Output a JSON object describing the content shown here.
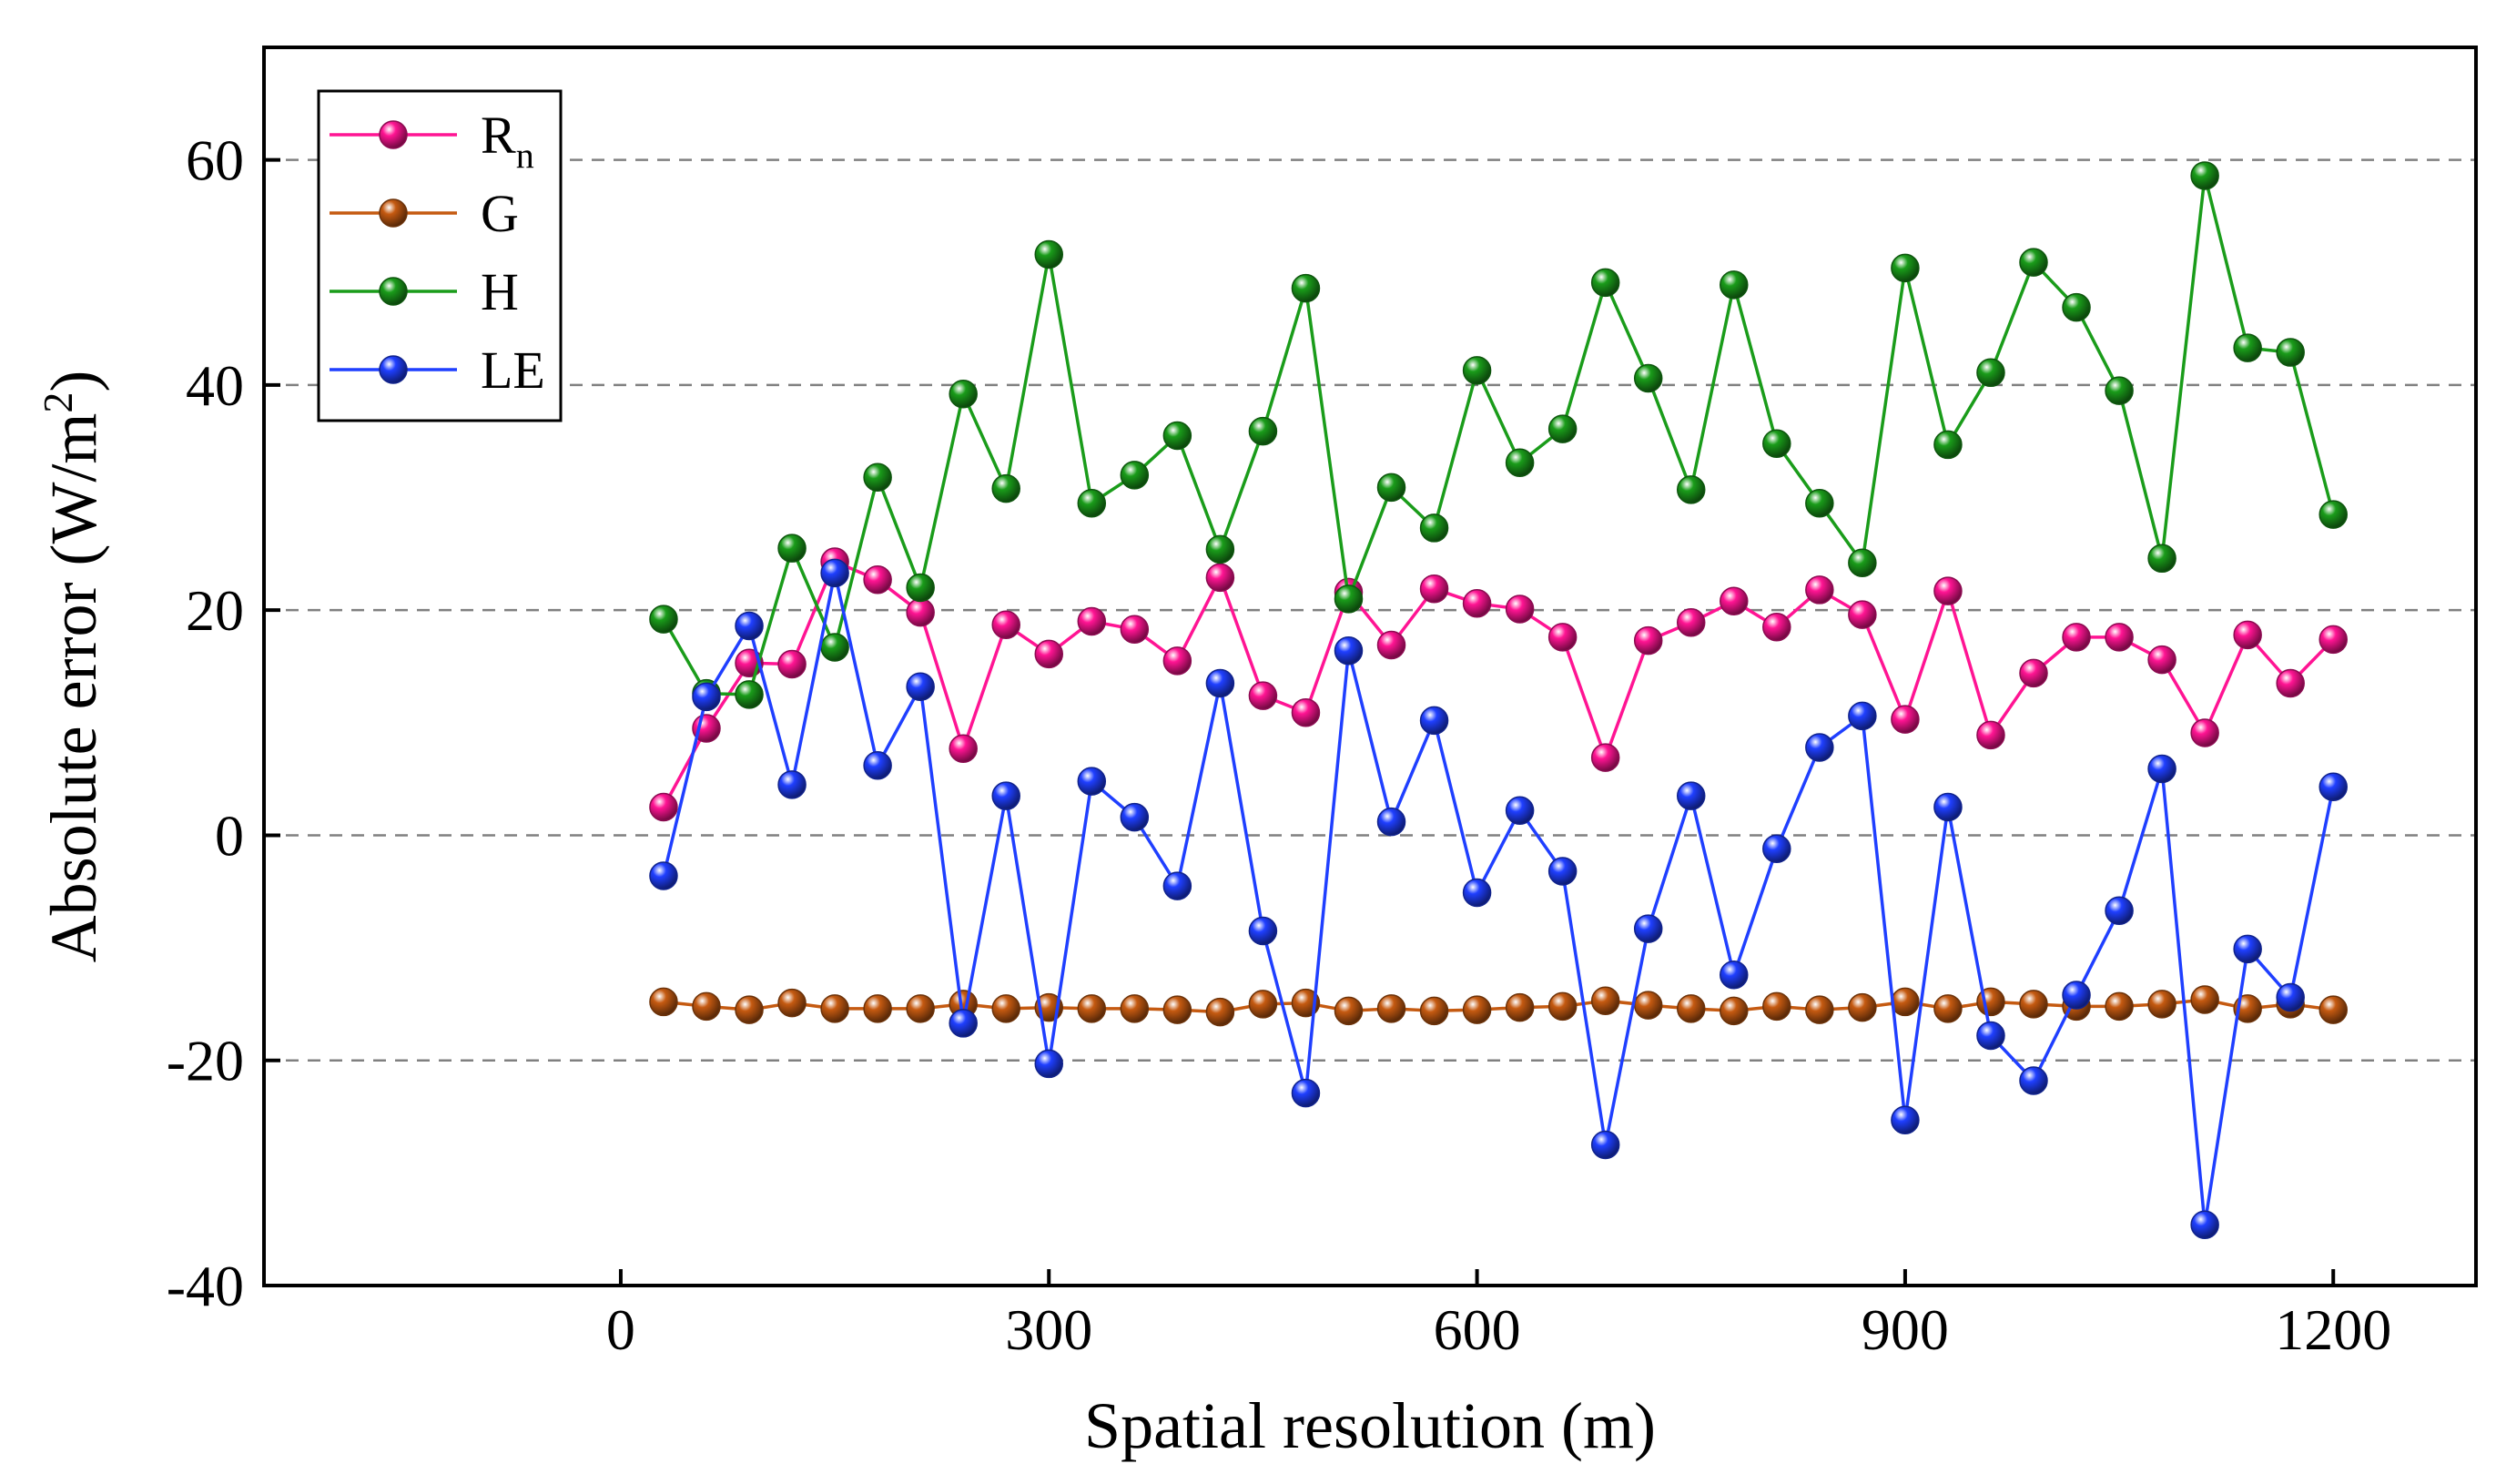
{
  "chart_data": {
    "type": "line",
    "xlabel": "Spatial resolution (m)",
    "ylabel_main": "Absolute error (W/m",
    "ylabel_sup": "2",
    "ylabel_close": ")",
    "xlim": [
      -250,
      1300
    ],
    "ylim": [
      -40,
      70
    ],
    "x_ticks": [
      0,
      300,
      600,
      900,
      1200
    ],
    "x_tick_labels": [
      "0",
      "300",
      "600",
      "900",
      "1200"
    ],
    "y_ticks": [
      -40,
      -20,
      0,
      20,
      40,
      60
    ],
    "y_tick_labels": [
      "-40",
      "-20",
      "0",
      "20",
      "40",
      "60"
    ],
    "gridlines_y": [
      -20,
      0,
      20,
      40,
      60
    ],
    "legend_position": "top-left",
    "x": [
      30,
      60,
      90,
      120,
      150,
      180,
      210,
      240,
      270,
      300,
      330,
      360,
      390,
      420,
      450,
      480,
      510,
      540,
      570,
      600,
      630,
      660,
      690,
      720,
      750,
      780,
      810,
      840,
      870,
      900,
      930,
      960,
      990,
      1020,
      1050,
      1080,
      1110,
      1140,
      1170,
      1200
    ],
    "series": [
      {
        "name": "Rn",
        "label_main": "R",
        "label_sub": "n",
        "color": "#ff1493",
        "values": [
          2.5,
          9.5,
          15.3,
          15.2,
          24.3,
          22.7,
          19.8,
          7.7,
          18.7,
          16.1,
          19.0,
          18.3,
          15.5,
          22.9,
          12.4,
          10.9,
          21.6,
          16.9,
          21.9,
          20.6,
          20.1,
          17.6,
          6.9,
          17.3,
          18.9,
          20.8,
          18.5,
          21.8,
          19.6,
          10.3,
          21.7,
          8.9,
          14.4,
          17.6,
          17.6,
          15.6,
          9.1,
          17.8,
          13.5,
          17.4
        ]
      },
      {
        "name": "G",
        "label_main": "G",
        "label_sub": "",
        "color": "#c55a11",
        "values": [
          -14.8,
          -15.2,
          -15.5,
          -14.9,
          -15.4,
          -15.4,
          -15.4,
          -15.0,
          -15.4,
          -15.3,
          -15.4,
          -15.4,
          -15.5,
          -15.7,
          -15.0,
          -14.9,
          -15.6,
          -15.4,
          -15.6,
          -15.5,
          -15.3,
          -15.2,
          -14.7,
          -15.1,
          -15.4,
          -15.6,
          -15.2,
          -15.5,
          -15.3,
          -14.8,
          -15.4,
          -14.8,
          -15.0,
          -15.2,
          -15.2,
          -15.0,
          -14.6,
          -15.4,
          -15.0,
          -15.5
        ]
      },
      {
        "name": "H",
        "label_main": "H",
        "label_sub": "",
        "color": "#1a9c1a",
        "values": [
          19.2,
          12.6,
          12.5,
          25.5,
          16.7,
          31.8,
          22.0,
          39.2,
          30.8,
          51.6,
          29.5,
          32.0,
          35.5,
          25.4,
          35.9,
          48.6,
          21.0,
          30.9,
          27.3,
          41.3,
          33.1,
          36.1,
          49.1,
          40.6,
          30.7,
          48.9,
          34.8,
          29.5,
          24.2,
          50.4,
          34.7,
          41.1,
          50.9,
          46.9,
          39.5,
          24.6,
          58.6,
          43.3,
          42.9,
          28.5
        ]
      },
      {
        "name": "LE",
        "label_main": "LE",
        "label_sub": "",
        "color": "#1f3fff",
        "values": [
          -3.6,
          12.3,
          18.6,
          4.5,
          23.3,
          6.2,
          13.2,
          -16.7,
          3.5,
          -20.3,
          4.8,
          1.6,
          -4.5,
          13.5,
          -8.5,
          -22.9,
          16.4,
          1.2,
          10.2,
          -5.1,
          2.2,
          -3.2,
          -27.5,
          -8.3,
          3.5,
          -12.4,
          -1.2,
          7.8,
          10.6,
          -25.3,
          2.5,
          -17.8,
          -21.8,
          -14.2,
          -6.7,
          5.9,
          -34.6,
          -10.1,
          -14.4,
          4.3
        ]
      }
    ]
  }
}
